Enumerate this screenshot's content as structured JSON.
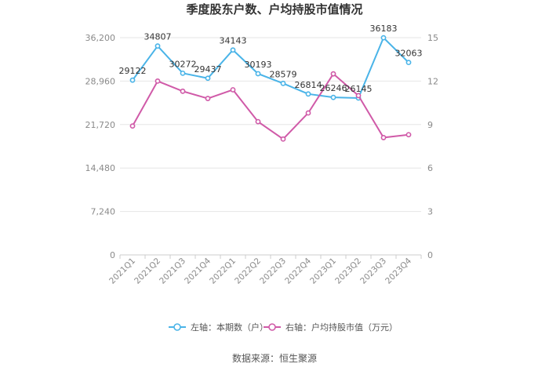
{
  "chart_data": {
    "type": "line",
    "title": "季度股东户数、户均持股市值情况",
    "categories": [
      "2021Q1",
      "2021Q2",
      "2021Q3",
      "2021Q4",
      "2022Q1",
      "2022Q2",
      "2022Q3",
      "2022Q4",
      "2023Q1",
      "2023Q2",
      "2023Q3",
      "2023Q4"
    ],
    "series": [
      {
        "name": "左轴：本期数（户）",
        "axis": "left",
        "color": "#4ab4e8",
        "values": [
          29122,
          34807,
          30272,
          29437,
          34143,
          30193,
          28579,
          26814,
          26246,
          26145,
          36183,
          32063
        ],
        "labels": [
          "29122",
          "34807",
          "30272",
          "29437",
          "34143",
          "30193",
          "28579",
          "26814",
          "26246",
          "26145",
          "36183",
          "32063"
        ]
      },
      {
        "name": "右轴：户均持股市值（万元）",
        "axis": "right",
        "color": "#d05aa8",
        "values": [
          8.9,
          12.0,
          11.3,
          10.8,
          11.4,
          9.2,
          8.0,
          9.8,
          12.5,
          11.0,
          8.1,
          8.3
        ]
      }
    ],
    "left_axis": {
      "ylim": [
        0,
        36200
      ],
      "ticks": [
        "0",
        "7,240",
        "14,480",
        "21,720",
        "28,960",
        "36,200"
      ]
    },
    "right_axis": {
      "ylim": [
        0,
        15
      ],
      "ticks": [
        "0",
        "3",
        "6",
        "9",
        "12",
        "15"
      ]
    },
    "grid": true,
    "legend_position": "bottom"
  },
  "source": "数据来源：恒生聚源"
}
